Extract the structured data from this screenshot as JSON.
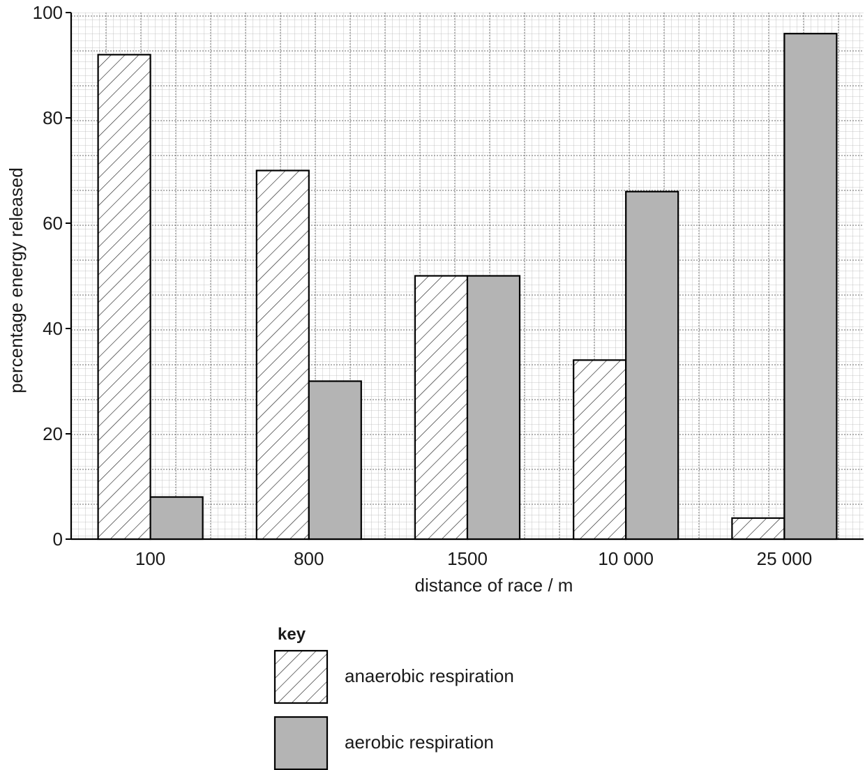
{
  "chart_data": {
    "type": "bar",
    "categories": [
      "100",
      "800",
      "1500",
      "10 000",
      "25 000"
    ],
    "series": [
      {
        "name": "anaerobic respiration",
        "values": [
          92,
          70,
          50,
          34,
          4
        ],
        "pattern": "hatched"
      },
      {
        "name": "aerobic respiration",
        "values": [
          8,
          30,
          50,
          66,
          96
        ],
        "color": "#b4b4b4"
      }
    ],
    "title": "",
    "xlabel": "distance of race / m",
    "ylabel": "percentage energy released",
    "ylim": [
      0,
      100
    ],
    "yticks": [
      "0",
      "20",
      "40",
      "60",
      "80",
      "100"
    ],
    "grid": true,
    "legend": {
      "title": "key",
      "placement": "bottom-center"
    }
  }
}
